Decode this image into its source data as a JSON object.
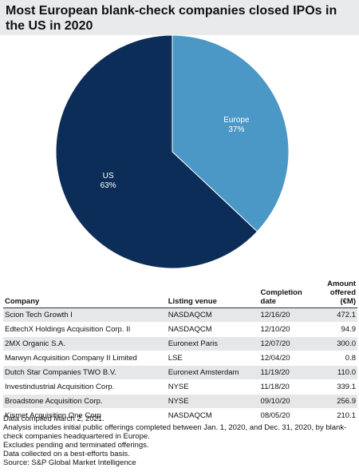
{
  "title": "Most European blank-check companies closed IPOs in the US in 2020",
  "chart_data": {
    "type": "pie",
    "slices": [
      {
        "label": "US",
        "value": 63,
        "value_label": "63%",
        "color": "#0c2d57"
      },
      {
        "label": "Europe",
        "value": 37,
        "value_label": "37%",
        "color": "#4b98c6"
      }
    ]
  },
  "table": {
    "headers": {
      "company": "Company",
      "venue": "Listing venue",
      "date": "Completion date",
      "amount": "Amount offered (€M)"
    },
    "rows": [
      {
        "company": "Scion Tech Growth I",
        "venue": "NASDAQCM",
        "date": "12/16/20",
        "amount": "472.1"
      },
      {
        "company": "EdtechX Holdings Acquisition Corp. II",
        "venue": "NASDAQCM",
        "date": "12/10/20",
        "amount": "94.9"
      },
      {
        "company": "2MX Organic S.A.",
        "venue": "Euronext Paris",
        "date": "12/07/20",
        "amount": "300.0"
      },
      {
        "company": "Marwyn Acquisition Company II Limited",
        "venue": "LSE",
        "date": "12/04/20",
        "amount": "0.8"
      },
      {
        "company": "Dutch Star Companies TWO B.V.",
        "venue": "Euronext Amsterdam",
        "date": "11/19/20",
        "amount": "110.0"
      },
      {
        "company": "Investindustrial Acquisition Corp.",
        "venue": "NYSE",
        "date": "11/18/20",
        "amount": "339.1"
      },
      {
        "company": "Broadstone Acquisition Corp.",
        "venue": "NYSE",
        "date": "09/10/20",
        "amount": "256.9"
      },
      {
        "company": "Kismet Acquisition One Corp",
        "venue": "NASDAQCM",
        "date": "08/05/20",
        "amount": "210.1"
      }
    ]
  },
  "footnotes": [
    "Data compiled March 2, 2021.",
    "Analysis includes initial public offerings completed between Jan. 1, 2020, and Dec. 31, 2020, by blank-check companies headquartered in Europe.",
    "Excludes pending and terminated offerings.",
    "Data collected on a best-efforts basis.",
    "Source: S&P Global Market Intelligence"
  ]
}
